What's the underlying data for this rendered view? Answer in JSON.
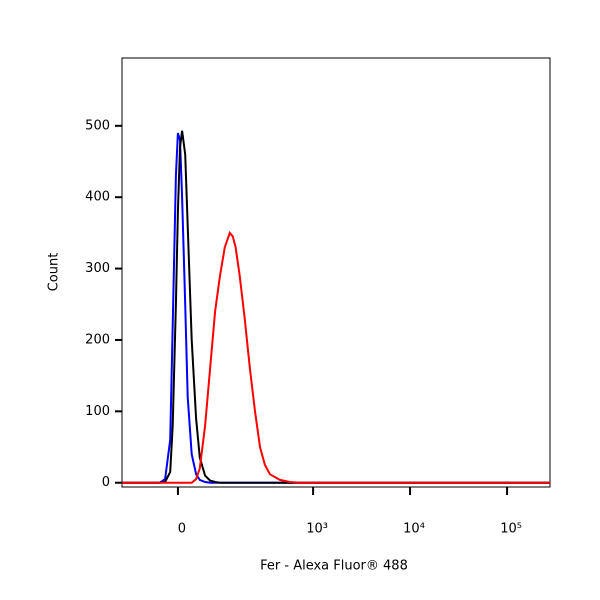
{
  "chart_data": {
    "type": "line",
    "xlabel": "Fer - Alexa Fluor® 488",
    "ylabel": "Count",
    "xscale": "asinh",
    "x_cofactor": 81,
    "x": [
      -142,
      -58,
      -36,
      -25,
      -15,
      -10,
      -4,
      0,
      4,
      8,
      14,
      19,
      27,
      36,
      44,
      56,
      68,
      81,
      95,
      110,
      127,
      138,
      149,
      166,
      189,
      216,
      246,
      278,
      314,
      355,
      452,
      575,
      731,
      1178,
      277000
    ],
    "series": [
      {
        "name": "blue",
        "color": "#0000ff",
        "values": [
          0,
          0,
          0,
          5,
          60,
          220,
          430,
          490,
          480,
          400,
          250,
          120,
          40,
          12,
          4,
          1,
          0,
          0,
          0,
          0,
          0,
          0,
          0,
          0,
          0,
          0,
          0,
          0,
          0,
          0,
          0,
          0,
          0,
          0,
          0
        ]
      },
      {
        "name": "black",
        "color": "#000000",
        "values": [
          0,
          0,
          0,
          1,
          15,
          80,
          250,
          380,
          470,
          493,
          460,
          360,
          200,
          90,
          35,
          10,
          3,
          1,
          0,
          0,
          0,
          0,
          0,
          0,
          0,
          0,
          0,
          0,
          0,
          0,
          0,
          0,
          0,
          0,
          0
        ]
      },
      {
        "name": "red",
        "color": "#ff0000",
        "values": [
          0,
          0,
          0,
          0,
          0,
          0,
          0,
          0,
          0,
          0,
          0,
          0,
          0,
          5,
          20,
          80,
          160,
          240,
          290,
          330,
          350,
          345,
          330,
          290,
          230,
          160,
          100,
          50,
          25,
          12,
          4,
          1,
          0,
          0,
          0
        ]
      }
    ],
    "xlim": [
      -142,
      277000
    ],
    "xticks": [
      {
        "value": 0,
        "label": "0"
      },
      {
        "value": 1000,
        "label": "10³"
      },
      {
        "value": 10000,
        "label": "10⁴"
      },
      {
        "value": 100000,
        "label": "10⁵"
      }
    ],
    "ylim": [
      -6,
      595
    ],
    "yticks": [
      0,
      100,
      200,
      300,
      400,
      500
    ]
  }
}
